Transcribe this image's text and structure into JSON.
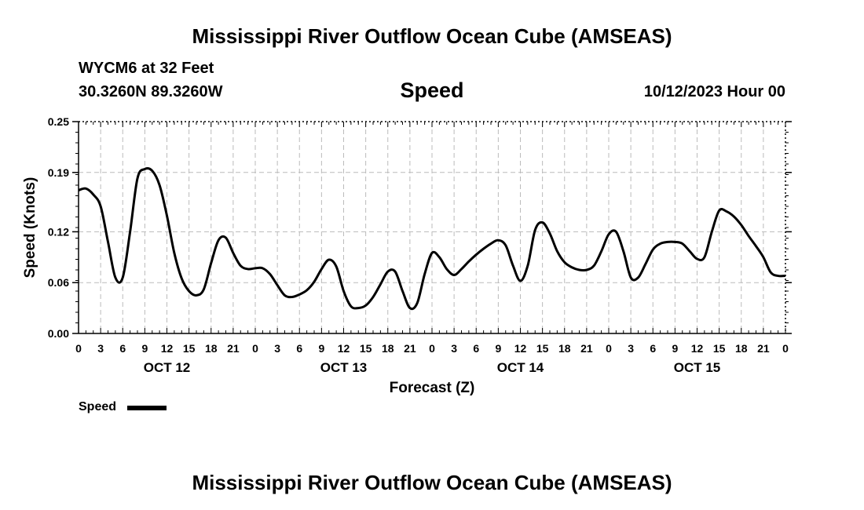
{
  "page": {
    "title_top": "Mississippi River Outflow Ocean Cube (AMSEAS)",
    "title_bottom": "Mississippi River Outflow Ocean Cube (AMSEAS)",
    "station": "WYCM6 at 32 Feet",
    "coords": "30.3260N  89.3260W",
    "plot_title": "Speed",
    "datetime": "10/12/2023 Hour 00",
    "legend_label": "Speed"
  },
  "chart_data": {
    "type": "line",
    "title": "Speed",
    "xlabel": "Forecast (Z)",
    "ylabel": "Speed (Knots)",
    "x_unit": "forecast hour",
    "xlim": [
      0,
      96
    ],
    "ylim": [
      0,
      0.25
    ],
    "yticks": [
      0.0,
      0.06,
      0.12,
      0.19,
      0.25
    ],
    "ytick_labels": [
      "0.00",
      "0.06",
      "0.12",
      "0.19",
      "0.25"
    ],
    "xticks": [
      0,
      3,
      6,
      9,
      12,
      15,
      18,
      21,
      24,
      27,
      30,
      33,
      36,
      39,
      42,
      45,
      48,
      51,
      54,
      57,
      60,
      63,
      66,
      69,
      72,
      75,
      78,
      81,
      84,
      87,
      90,
      93,
      96
    ],
    "xtick_labels": [
      "0",
      "3",
      "6",
      "9",
      "12",
      "15",
      "18",
      "21",
      "0",
      "3",
      "6",
      "9",
      "12",
      "15",
      "18",
      "21",
      "0",
      "3",
      "6",
      "9",
      "12",
      "15",
      "18",
      "21",
      "0",
      "3",
      "6",
      "9",
      "12",
      "15",
      "18",
      "21",
      "0"
    ],
    "day_labels": [
      {
        "hour": 12,
        "label": "OCT 12"
      },
      {
        "hour": 36,
        "label": "OCT 13"
      },
      {
        "hour": 60,
        "label": "OCT 14"
      },
      {
        "hour": 84,
        "label": "OCT 15"
      }
    ],
    "grid": true,
    "legend": "bottom-left",
    "series": [
      {
        "name": "Speed",
        "color": "#000000",
        "x": [
          0,
          1,
          2,
          3,
          4,
          5,
          6,
          7,
          8,
          9,
          10,
          11,
          12,
          13,
          14,
          15,
          16,
          17,
          18,
          19,
          20,
          21,
          22,
          23,
          24,
          25,
          26,
          27,
          28,
          29,
          30,
          31,
          32,
          33,
          34,
          35,
          36,
          37,
          38,
          39,
          40,
          41,
          42,
          43,
          44,
          45,
          46,
          47,
          48,
          49,
          50,
          51,
          52,
          53,
          54,
          55,
          56,
          57,
          58,
          59,
          60,
          61,
          62,
          63,
          64,
          65,
          66,
          67,
          68,
          69,
          70,
          71,
          72,
          73,
          74,
          75,
          76,
          77,
          78,
          79,
          80,
          81,
          82,
          83,
          84,
          85,
          86,
          87,
          88,
          89,
          90,
          91,
          92,
          93,
          94,
          95,
          96
        ],
        "values": [
          0.169,
          0.171,
          0.164,
          0.15,
          0.108,
          0.066,
          0.066,
          0.12,
          0.183,
          0.194,
          0.192,
          0.175,
          0.139,
          0.095,
          0.065,
          0.05,
          0.045,
          0.052,
          0.083,
          0.11,
          0.113,
          0.095,
          0.08,
          0.076,
          0.077,
          0.077,
          0.07,
          0.057,
          0.045,
          0.043,
          0.046,
          0.051,
          0.061,
          0.076,
          0.087,
          0.079,
          0.05,
          0.032,
          0.03,
          0.033,
          0.043,
          0.058,
          0.073,
          0.073,
          0.05,
          0.03,
          0.036,
          0.07,
          0.095,
          0.09,
          0.076,
          0.069,
          0.076,
          0.085,
          0.093,
          0.1,
          0.106,
          0.11,
          0.104,
          0.08,
          0.062,
          0.08,
          0.122,
          0.131,
          0.118,
          0.097,
          0.084,
          0.078,
          0.075,
          0.075,
          0.08,
          0.097,
          0.117,
          0.12,
          0.097,
          0.066,
          0.066,
          0.082,
          0.099,
          0.106,
          0.108,
          0.108,
          0.106,
          0.097,
          0.088,
          0.09,
          0.12,
          0.145,
          0.144,
          0.138,
          0.128,
          0.115,
          0.103,
          0.09,
          0.072,
          0.068,
          0.068
        ]
      }
    ]
  }
}
